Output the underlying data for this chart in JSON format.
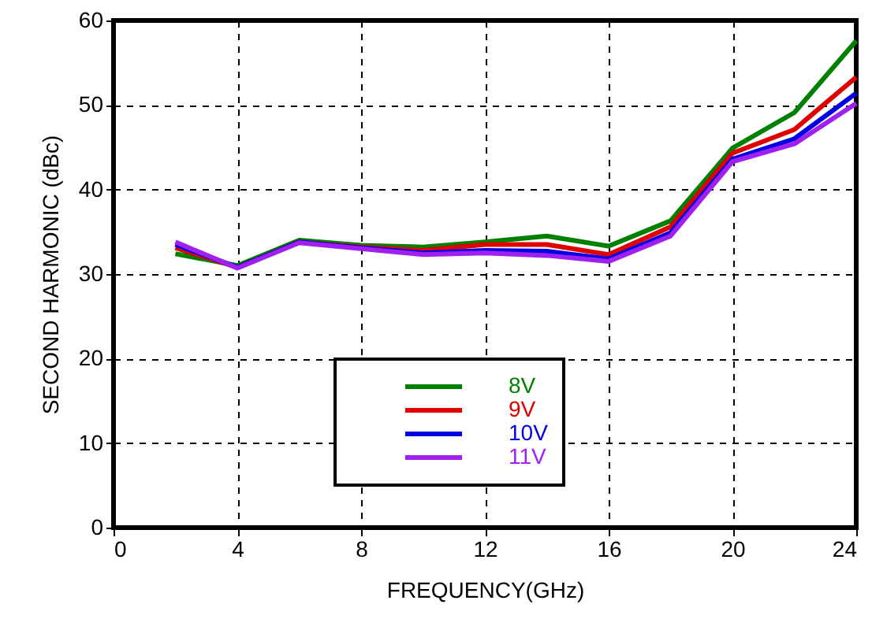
{
  "chart_data": {
    "type": "line",
    "xlabel": "FREQUENCY(GHz)",
    "ylabel": "SECOND HARMONIC (dBc)",
    "x": [
      2,
      4,
      6,
      8,
      10,
      12,
      14,
      16,
      18,
      20,
      22,
      24
    ],
    "series": [
      {
        "name": "8V",
        "color": "#008000",
        "values": [
          32.4,
          31.0,
          34.0,
          33.4,
          33.2,
          33.8,
          34.5,
          33.3,
          36.3,
          44.9,
          49.1,
          57.6
        ]
      },
      {
        "name": "9V",
        "color": "#e00000",
        "values": [
          33.1,
          30.8,
          33.8,
          33.2,
          32.8,
          33.5,
          33.5,
          32.3,
          35.6,
          44.3,
          47.1,
          53.3
        ]
      },
      {
        "name": "10V",
        "color": "#0000e0",
        "values": [
          33.5,
          30.8,
          33.8,
          33.1,
          32.5,
          32.8,
          32.7,
          31.8,
          34.9,
          43.6,
          46.0,
          51.4
        ]
      },
      {
        "name": "11V",
        "color": "#a020f0",
        "values": [
          33.8,
          30.7,
          33.7,
          33.0,
          32.3,
          32.5,
          32.2,
          31.5,
          34.5,
          43.3,
          45.4,
          50.2
        ]
      }
    ],
    "xlim": [
      0,
      24
    ],
    "xticks": [
      0,
      4,
      8,
      12,
      16,
      20,
      24
    ],
    "ylim": [
      0,
      60
    ],
    "yticks": [
      0,
      10,
      20,
      30,
      40,
      50,
      60
    ],
    "grid": true,
    "legend": "bottom",
    "marker": "none",
    "line_style": "solid"
  }
}
